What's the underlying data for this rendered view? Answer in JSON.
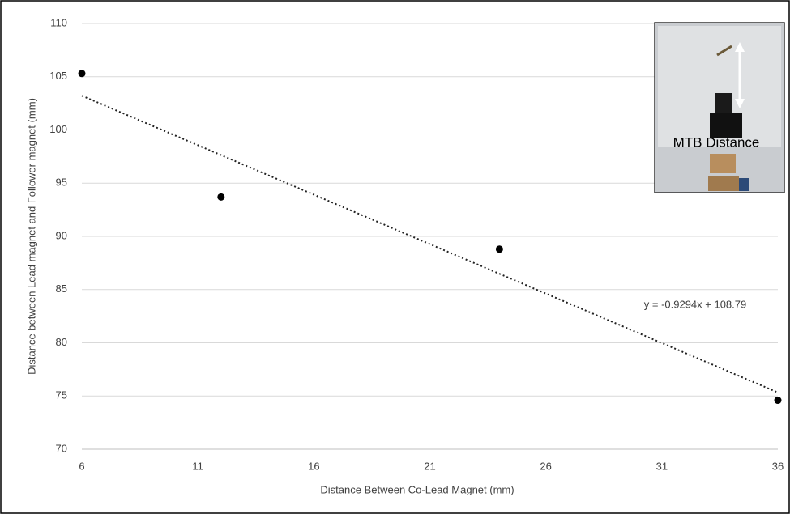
{
  "chart_data": {
    "type": "scatter",
    "x_label": "Distance Between Co-Lead Magnet (mm)",
    "y_label": "Distance between Lead magnet and Follower magnet (mm)",
    "x": [
      6,
      12,
      24,
      36
    ],
    "values": [
      105.3,
      93.7,
      88.8,
      74.6
    ],
    "color": "#000000",
    "xlim": [
      6,
      36
    ],
    "xticks": [
      6,
      11,
      16,
      21,
      26,
      31,
      36
    ],
    "ylim": [
      70,
      110
    ],
    "yticks": [
      70,
      75,
      80,
      85,
      90,
      95,
      100,
      105,
      110
    ],
    "grid": true,
    "trendline": {
      "slope": -0.9294,
      "intercept": 108.79,
      "label": "y = -0.9294x + 108.79"
    },
    "inset_label": "MTB Distance"
  }
}
